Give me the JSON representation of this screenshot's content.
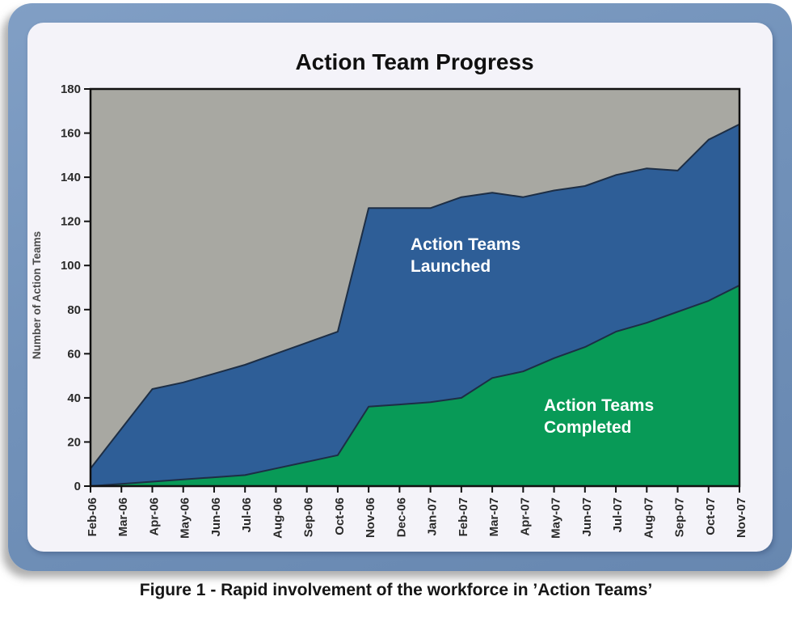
{
  "figure": {
    "caption": "Figure 1 - Rapid involvement of the workforce in ’Action Teams’"
  },
  "colors": {
    "frame_blue": "#7292ba",
    "card_background": "#f4f3f9",
    "plot_background": "#a8a8a2",
    "launched_blue": "#2e5e97",
    "completed_green": "#089a57",
    "series_outline": "#1d2e45"
  },
  "chart_data": {
    "type": "area",
    "title": "Action Team Progress",
    "xlabel": "",
    "ylabel": "Number of Action Teams",
    "ylim": [
      0,
      180
    ],
    "ytick_step": 20,
    "grid": false,
    "legend_position": "none (in-plot text annotations)",
    "plot_background": "#a8a8a2",
    "categories": [
      "Feb-06",
      "Mar-06",
      "Apr-06",
      "May-06",
      "Jun-06",
      "Jul-06",
      "Aug-06",
      "Sep-06",
      "Oct-06",
      "Nov-06",
      "Dec-06",
      "Jan-07",
      "Feb-07",
      "Mar-07",
      "Apr-07",
      "May-07",
      "Jun-07",
      "Jul-07",
      "Aug-07",
      "Sep-07",
      "Oct-07",
      "Nov-07"
    ],
    "series": [
      {
        "name": "Action Teams Launched",
        "color": "#2e5e97",
        "values": [
          8,
          26,
          44,
          47,
          51,
          55,
          60,
          65,
          70,
          126,
          126,
          126,
          131,
          133,
          131,
          134,
          136,
          141,
          144,
          143,
          157,
          164
        ]
      },
      {
        "name": "Action Teams Completed",
        "color": "#089a57",
        "values": [
          0,
          1,
          2,
          3,
          4,
          5,
          8,
          11,
          14,
          36,
          37,
          38,
          40,
          49,
          52,
          58,
          63,
          70,
          74,
          79,
          84,
          91
        ]
      }
    ],
    "annotations": [
      {
        "lines": [
          "Action Teams",
          "Launched"
        ],
        "color": "#ffffff"
      },
      {
        "lines": [
          "Action Teams",
          "Completed"
        ],
        "color": "#ffffff"
      }
    ]
  }
}
